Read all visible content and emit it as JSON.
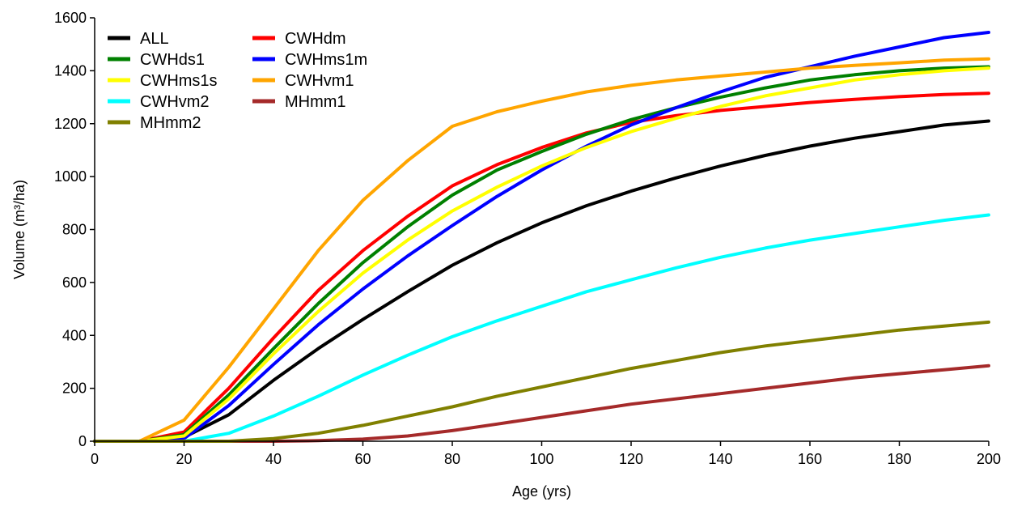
{
  "chart_data": {
    "type": "line",
    "xlabel": "Age (yrs)",
    "ylabel": "Volume (m³/ha)",
    "xlim": [
      0,
      200
    ],
    "ylim": [
      0,
      1600
    ],
    "xticks": [
      0,
      20,
      40,
      60,
      80,
      100,
      120,
      140,
      160,
      180,
      200
    ],
    "yticks": [
      0,
      200,
      400,
      600,
      800,
      1000,
      1200,
      1400,
      1600
    ],
    "grid": false,
    "legend_position": "top-left",
    "x": [
      0,
      10,
      20,
      30,
      40,
      50,
      60,
      70,
      80,
      90,
      100,
      110,
      120,
      130,
      140,
      150,
      160,
      170,
      180,
      190,
      200
    ],
    "series": [
      {
        "name": "ALL",
        "color": "#000000",
        "values": [
          0,
          0,
          15,
          100,
          230,
          350,
          460,
          565,
          665,
          750,
          825,
          890,
          945,
          995,
          1040,
          1080,
          1115,
          1145,
          1170,
          1195,
          1210
        ]
      },
      {
        "name": "CWHdm",
        "color": "#ff0000",
        "values": [
          0,
          0,
          35,
          200,
          390,
          570,
          720,
          850,
          965,
          1045,
          1110,
          1165,
          1205,
          1230,
          1250,
          1265,
          1280,
          1292,
          1302,
          1310,
          1315
        ]
      },
      {
        "name": "CWHds1",
        "color": "#008000",
        "values": [
          0,
          0,
          25,
          175,
          350,
          520,
          675,
          810,
          930,
          1025,
          1095,
          1160,
          1215,
          1260,
          1300,
          1335,
          1365,
          1385,
          1400,
          1410,
          1415
        ]
      },
      {
        "name": "CWHms1m",
        "color": "#0000ff",
        "values": [
          0,
          0,
          10,
          135,
          290,
          440,
          575,
          700,
          815,
          925,
          1025,
          1115,
          1195,
          1260,
          1320,
          1375,
          1415,
          1455,
          1490,
          1525,
          1545
        ]
      },
      {
        "name": "CWHms1s",
        "color": "#ffff00",
        "values": [
          0,
          0,
          20,
          160,
          330,
          490,
          635,
          760,
          870,
          960,
          1040,
          1110,
          1170,
          1220,
          1265,
          1305,
          1335,
          1365,
          1385,
          1400,
          1410
        ]
      },
      {
        "name": "CWHvm1",
        "color": "#ffa500",
        "values": [
          0,
          0,
          80,
          280,
          500,
          720,
          910,
          1060,
          1190,
          1245,
          1285,
          1320,
          1345,
          1365,
          1380,
          1395,
          1410,
          1420,
          1430,
          1440,
          1445
        ]
      },
      {
        "name": "CWHvm2",
        "color": "#00ffff",
        "values": [
          0,
          0,
          0,
          30,
          95,
          170,
          250,
          325,
          395,
          455,
          510,
          565,
          610,
          655,
          695,
          730,
          760,
          785,
          810,
          835,
          855
        ]
      },
      {
        "name": "MHmm1",
        "color": "#a52a2a",
        "values": [
          0,
          0,
          0,
          0,
          0,
          2,
          8,
          20,
          40,
          65,
          90,
          115,
          140,
          160,
          180,
          200,
          220,
          240,
          255,
          270,
          285
        ]
      },
      {
        "name": "MHmm2",
        "color": "#808000",
        "values": [
          0,
          0,
          0,
          0,
          10,
          30,
          60,
          95,
          130,
          170,
          205,
          240,
          275,
          305,
          335,
          360,
          380,
          400,
          420,
          435,
          450
        ]
      }
    ]
  }
}
